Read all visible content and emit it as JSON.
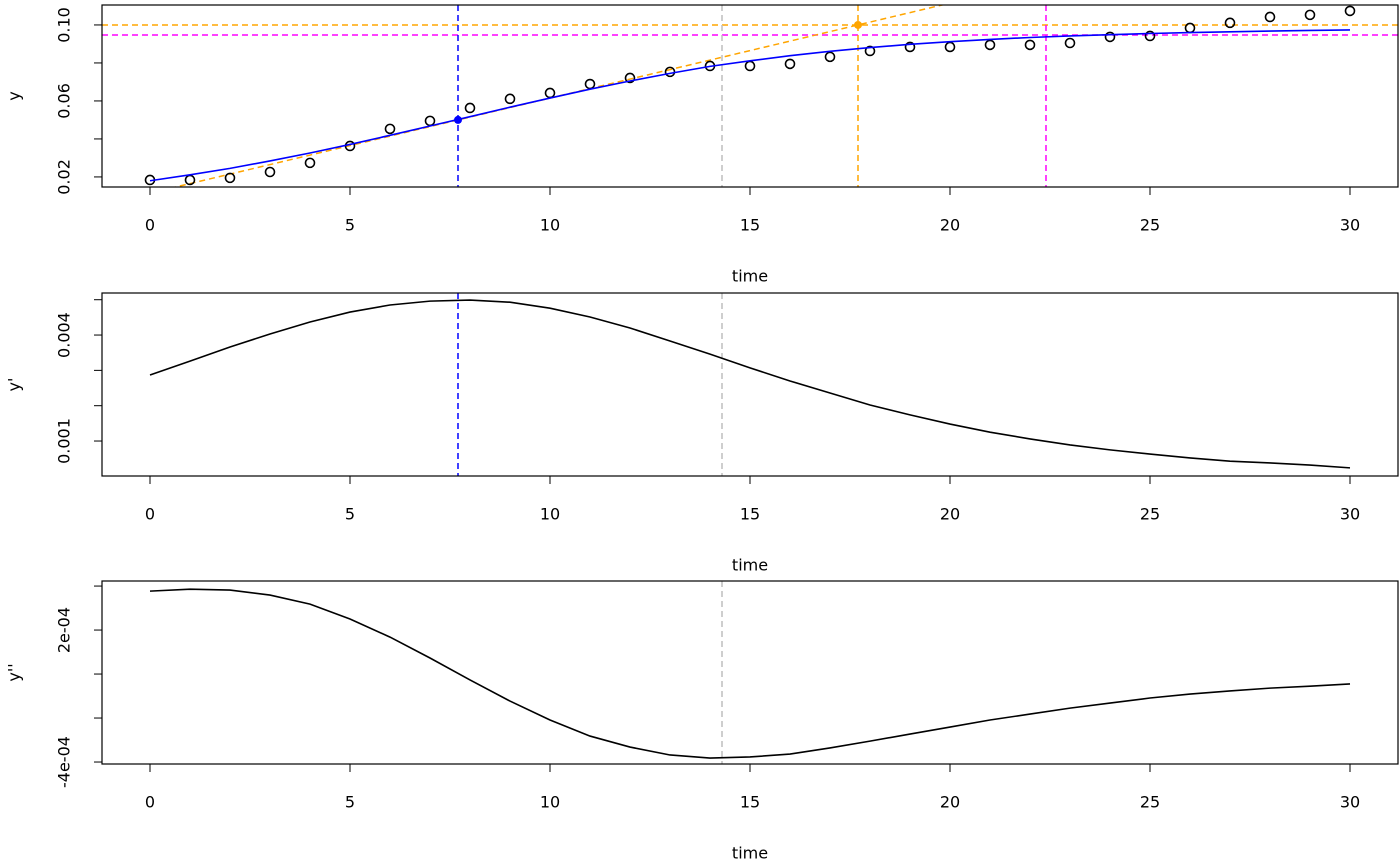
{
  "chart_data": [
    {
      "type": "scatter",
      "xlabel": "time",
      "ylabel": "y",
      "x": [
        0,
        1,
        2,
        3,
        4,
        5,
        6,
        7,
        8,
        9,
        10,
        11,
        12,
        13,
        14,
        15,
        16,
        17,
        18,
        19,
        20,
        21,
        22,
        23,
        24,
        25,
        26,
        27,
        28,
        29,
        30
      ],
      "series": [
        {
          "style": "points",
          "color": "#000000",
          "values": [
            0.0184,
            0.0184,
            0.0195,
            0.0226,
            0.0274,
            0.0363,
            0.0453,
            0.0495,
            0.0563,
            0.0611,
            0.0642,
            0.0689,
            0.0721,
            0.0753,
            0.0784,
            0.0784,
            0.0795,
            0.0832,
            0.0863,
            0.0884,
            0.0884,
            0.0895,
            0.0895,
            0.0905,
            0.0937,
            0.0942,
            0.0984,
            0.1011,
            0.1042,
            0.1053,
            0.1074
          ]
        },
        {
          "style": "line",
          "color": "#0000ff",
          "values": [
            0.018,
            0.0211,
            0.0245,
            0.0284,
            0.0326,
            0.0371,
            0.0419,
            0.0468,
            0.0517,
            0.0567,
            0.0615,
            0.0662,
            0.0705,
            0.0745,
            0.0782,
            0.0811,
            0.0838,
            0.0861,
            0.0881,
            0.0898,
            0.0912,
            0.0924,
            0.0934,
            0.0942,
            0.0949,
            0.0955,
            0.096,
            0.0964,
            0.0968,
            0.0971,
            0.0974
          ]
        }
      ],
      "tangent": {
        "x": [
          7.7,
          17.7
        ],
        "y": [
          0.05,
          0.1
        ],
        "color": "#ffa500"
      },
      "markers": [
        {
          "x": 7.7,
          "y": 0.05,
          "color": "#0000ff"
        },
        {
          "x": 17.7,
          "y": 0.1,
          "color": "#ffa500"
        }
      ],
      "vlines": [
        {
          "x": 7.7,
          "color": "#0000ff"
        },
        {
          "x": 14.3,
          "color": "#bebebe"
        },
        {
          "x": 17.7,
          "color": "#ffa500"
        },
        {
          "x": 22.4,
          "color": "#ff00ff"
        }
      ],
      "hlines": [
        {
          "y": 0.1,
          "color": "#ffa500"
        },
        {
          "y": 0.0947,
          "color": "#ff00ff"
        }
      ],
      "xlim": [
        -1.2,
        31.2
      ],
      "xticks": [
        0,
        5,
        10,
        15,
        20,
        25,
        30
      ],
      "ylim": [
        0.0147,
        0.1105
      ],
      "yticks": [
        0.02,
        0.06,
        {
          "value": 0.1,
          "label": "0.10"
        }
      ],
      "yminor": [
        0.04,
        0.08
      ]
    },
    {
      "type": "line",
      "xlabel": "time",
      "ylabel": "y'",
      "x": [
        0,
        1,
        2,
        3,
        4,
        5,
        6,
        7,
        8,
        9,
        10,
        11,
        12,
        13,
        14,
        15,
        16,
        17,
        18,
        19,
        20,
        21,
        22,
        23,
        24,
        25,
        26,
        27,
        28,
        29,
        30
      ],
      "series": [
        {
          "style": "line",
          "color": "#000000",
          "values": [
            0.00287,
            0.00326,
            0.00366,
            0.00403,
            0.00437,
            0.00465,
            0.00485,
            0.00496,
            0.00499,
            0.00493,
            0.00476,
            0.00451,
            0.0042,
            0.00383,
            0.00346,
            0.00307,
            0.0027,
            0.00236,
            0.00202,
            0.00174,
            0.00148,
            0.00125,
            0.00106,
            0.00089,
            0.00075,
            0.00063,
            0.00052,
            0.00043,
            0.00038,
            0.00032,
            0.00024
          ]
        }
      ],
      "vlines": [
        {
          "x": 7.7,
          "color": "#0000ff"
        },
        {
          "x": 14.3,
          "color": "#bebebe"
        }
      ],
      "xlim": [
        -1.2,
        31.2
      ],
      "xticks": [
        0,
        5,
        10,
        15,
        20,
        25,
        30
      ],
      "ylim": [
        1e-05,
        0.00519
      ],
      "yticks": [
        0.001,
        0.004
      ],
      "yminor": [
        0.002,
        0.003,
        0.005
      ]
    },
    {
      "type": "line",
      "xlabel": "time",
      "ylabel": "y''",
      "x": [
        0,
        1,
        2,
        3,
        4,
        5,
        6,
        7,
        8,
        9,
        10,
        11,
        12,
        13,
        14,
        15,
        16,
        17,
        18,
        19,
        20,
        21,
        22,
        23,
        24,
        25,
        26,
        27,
        28,
        29,
        30
      ],
      "series": [
        {
          "style": "line",
          "color": "#000000",
          "values": [
            0.000377,
            0.000386,
            0.000382,
            0.000359,
            0.000318,
            0.00025,
            0.000168,
            7.3e-05,
            -2.7e-05,
            -0.000123,
            -0.000209,
            -0.000282,
            -0.000332,
            -0.000368,
            -0.000382,
            -0.000377,
            -0.000364,
            -0.000336,
            -0.000305,
            -0.000273,
            -0.000241,
            -0.000209,
            -0.000182,
            -0.000155,
            -0.000132,
            -0.000109,
            -9.1e-05,
            -7.7e-05,
            -6.4e-05,
            -5.5e-05,
            -4.5e-05
          ]
        }
      ],
      "vlines": [
        {
          "x": 14.3,
          "color": "#bebebe"
        }
      ],
      "xlim": [
        -1.2,
        31.2
      ],
      "xticks": [
        0,
        5,
        10,
        15,
        20,
        25,
        30
      ],
      "ylim": [
        -0.000409,
        0.000423
      ],
      "yticks": [
        {
          "value": 0.0002,
          "label": "2e-04"
        },
        {
          "value": -0.0004,
          "label": "-4e-04"
        }
      ],
      "yminor": [
        0.0004,
        0,
        -0.0002
      ]
    }
  ]
}
